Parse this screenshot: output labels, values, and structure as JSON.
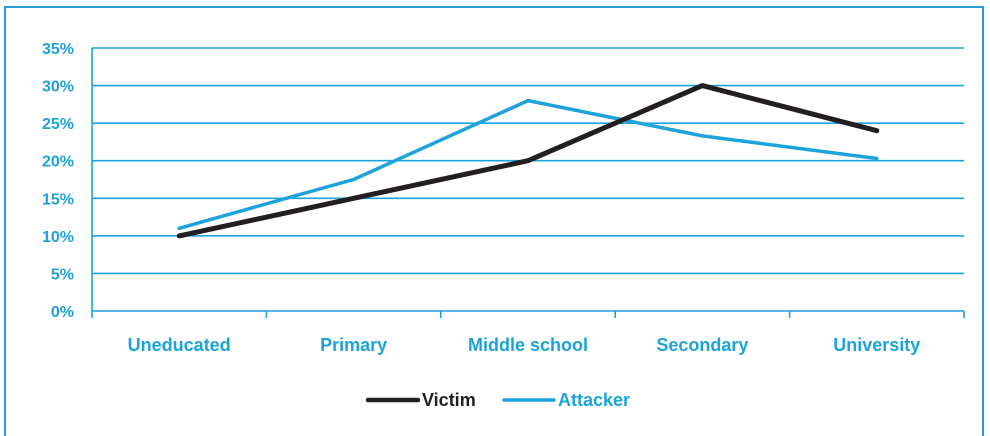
{
  "chart_data": {
    "type": "line",
    "categories": [
      "Uneducated",
      "Primary",
      "Middle school",
      "Secondary",
      "University"
    ],
    "series": [
      {
        "name": "Victim",
        "values": [
          10,
          15,
          20,
          30,
          24
        ],
        "color": "#231f20"
      },
      {
        "name": "Attacker",
        "values": [
          11,
          17.5,
          28,
          23.3,
          20.3
        ],
        "color": "#1ca3dc"
      }
    ],
    "y_ticks": [
      "0%",
      "5%",
      "10%",
      "15%",
      "20%",
      "25%",
      "30%",
      "35%"
    ],
    "ylim": [
      0,
      35
    ],
    "y_step": 5,
    "grid": true,
    "legend_position": "bottom-center",
    "axis_color": "#1ca3dc"
  }
}
